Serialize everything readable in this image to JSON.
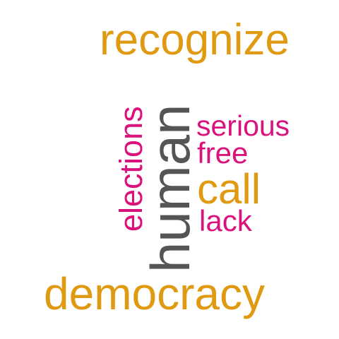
{
  "colors": {
    "orange": "#E09A12",
    "gray": "#555555",
    "magenta": "#D9127C"
  },
  "words": {
    "recognize": "recognize",
    "human": "human",
    "serious": "serious",
    "free": "free",
    "call": "call",
    "elections": "elections",
    "lack": "lack",
    "democracy": "democracy"
  }
}
